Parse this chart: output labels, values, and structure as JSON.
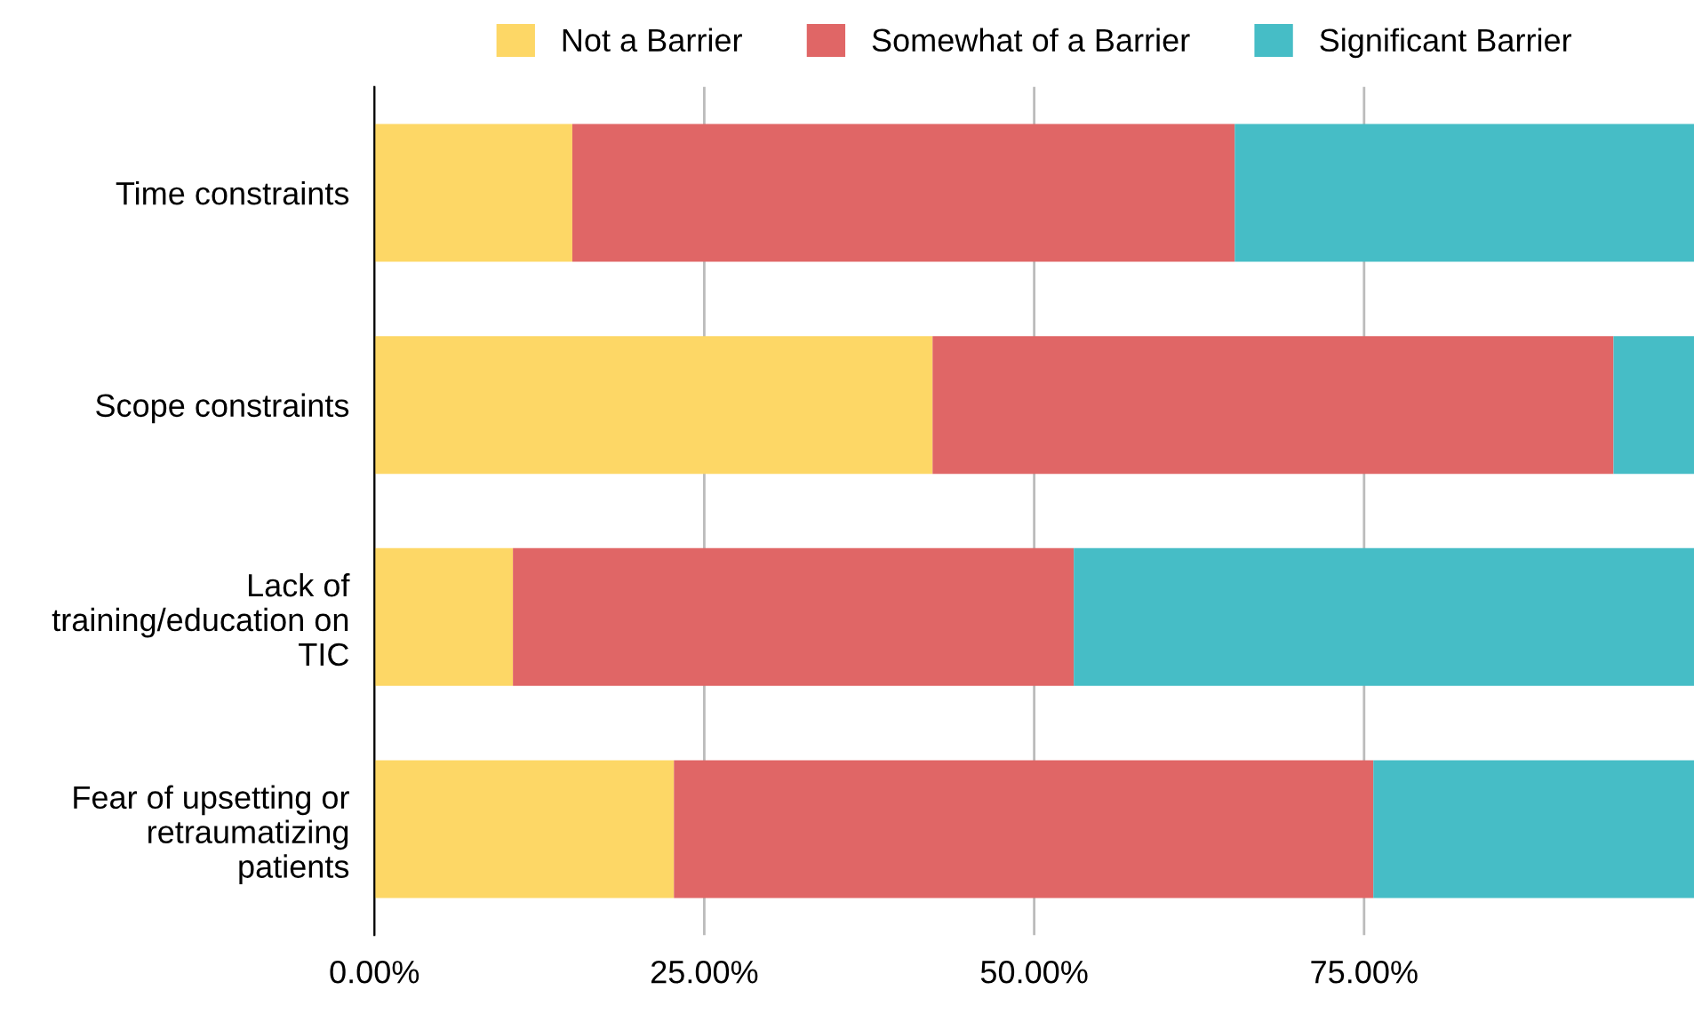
{
  "chart_data": {
    "type": "bar",
    "orientation": "horizontal",
    "stacked": true,
    "categories": [
      "Time constraints",
      "Scope constraints",
      "Lack of\ntraining/education on\nTIC",
      "Fear of upsetting or\nretraumatizing\npatients"
    ],
    "series": [
      {
        "name": "Not a Barrier",
        "color": "#fdd766",
        "values": [
          15.0,
          42.3,
          10.5,
          22.7
        ]
      },
      {
        "name": "Somewhat of a Barrier",
        "color": "#e06666",
        "values": [
          50.2,
          51.6,
          42.5,
          53.0
        ]
      },
      {
        "name": "Significant Barrier",
        "color": "#46bdc6",
        "values": [
          34.8,
          6.1,
          47.0,
          24.3
        ]
      }
    ],
    "xlim": [
      0,
      100
    ],
    "xticks": [
      {
        "value": 0,
        "label": "0.00%"
      },
      {
        "value": 25,
        "label": "25.00%"
      },
      {
        "value": 50,
        "label": "50.00%"
      },
      {
        "value": 75,
        "label": "75.00%"
      }
    ],
    "grid": "x",
    "legend": "top"
  }
}
